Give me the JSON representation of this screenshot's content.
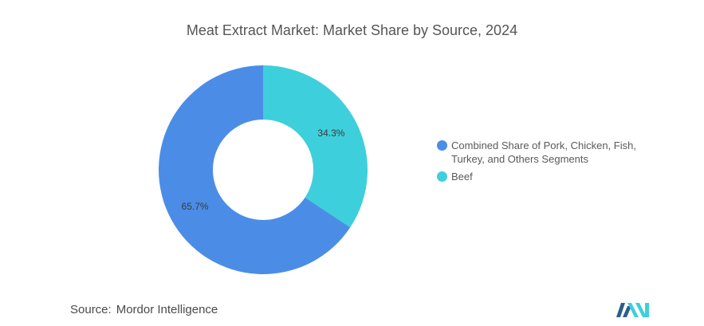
{
  "chart_data": {
    "type": "pie",
    "title": "Meat Extract Market: Market Share by Source, 2024",
    "categories": [
      "Combined Share of Pork, Chicken, Fish, Turkey, and Others Segments",
      "Beef"
    ],
    "values": [
      65.7,
      34.3
    ],
    "value_labels": [
      "65.7%",
      "34.3%"
    ],
    "unit": "%",
    "donut": true,
    "legend_position": "right",
    "colors": [
      "#4b8de6",
      "#3ecfdc"
    ]
  },
  "source": {
    "label": "Source:",
    "text": "Mordor Intelligence"
  },
  "logo": {
    "icon": "mordor-intelligence-logo-icon",
    "colors": [
      "#2e5e8a",
      "#3ecfdc"
    ]
  }
}
